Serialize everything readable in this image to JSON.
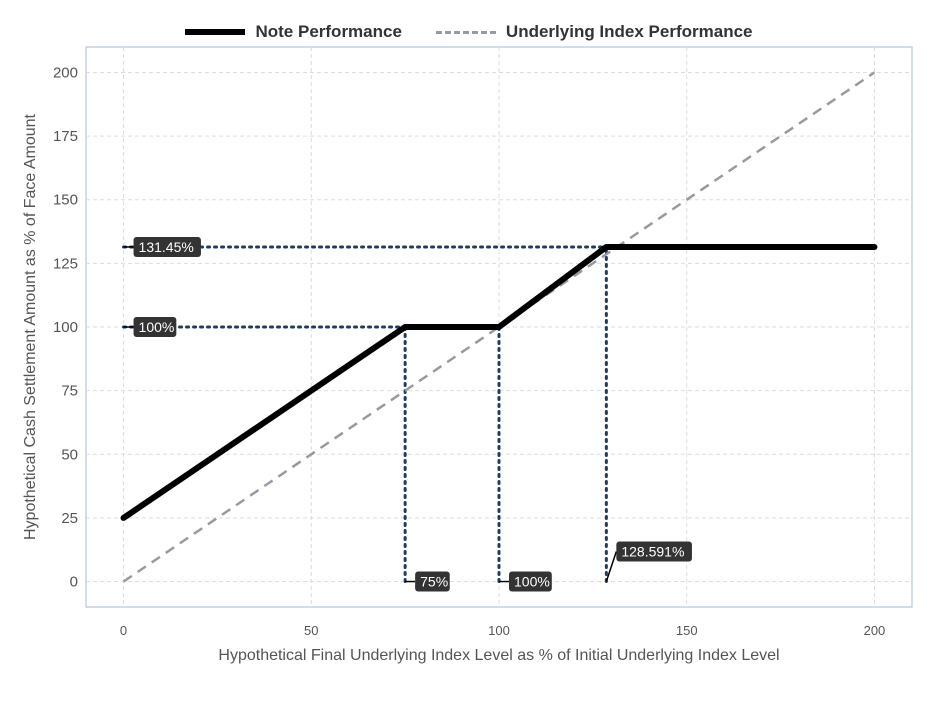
{
  "chart_data": {
    "type": "line",
    "title": "",
    "xlabel": "Hypothetical Final Underlying Index Level as % of Initial Underlying Index Level",
    "ylabel": "Hypothetical Cash Settlement Amount as % of Face Amount",
    "xlim": [
      -10,
      210
    ],
    "ylim": [
      -10,
      210
    ],
    "xticks": [
      0,
      50,
      100,
      150,
      200
    ],
    "yticks": [
      0,
      25,
      50,
      75,
      100,
      125,
      150,
      175,
      200
    ],
    "grid": true,
    "legend_position": "top",
    "series": [
      {
        "name": "Note Performance",
        "style": "solid",
        "color": "#000000",
        "x": [
          0,
          75,
          100,
          128.591,
          200
        ],
        "y": [
          25,
          100,
          100,
          131.45,
          131.45
        ]
      },
      {
        "name": "Underlying Index Performance",
        "style": "dashed",
        "color": "#9999a3",
        "x": [
          0,
          200
        ],
        "y": [
          0,
          200
        ]
      }
    ],
    "reference_lines": [
      {
        "orientation": "horizontal",
        "y": 131.45,
        "x_from": 0,
        "x_to": 128.591,
        "color": "#1f3a66"
      },
      {
        "orientation": "horizontal",
        "y": 100,
        "x_from": 0,
        "x_to": 75,
        "color": "#1f3a66"
      },
      {
        "orientation": "vertical",
        "x": 75,
        "y_from": 0,
        "y_to": 100,
        "color": "#1f3a66"
      },
      {
        "orientation": "vertical",
        "x": 100,
        "y_from": 0,
        "y_to": 100,
        "color": "#1f3a66"
      },
      {
        "orientation": "vertical",
        "x": 128.591,
        "y_from": 0,
        "y_to": 131.45,
        "color": "#1f3a66"
      }
    ],
    "annotations": [
      {
        "text": "131.45%",
        "x": 0,
        "y": 131.45
      },
      {
        "text": "100%",
        "x": 0,
        "y": 100
      },
      {
        "text": "75%",
        "x": 75,
        "y": 0
      },
      {
        "text": "100%",
        "x": 100,
        "y": 0
      },
      {
        "text": "128.591%",
        "x": 128.591,
        "y": 0,
        "offset": "up"
      }
    ]
  }
}
